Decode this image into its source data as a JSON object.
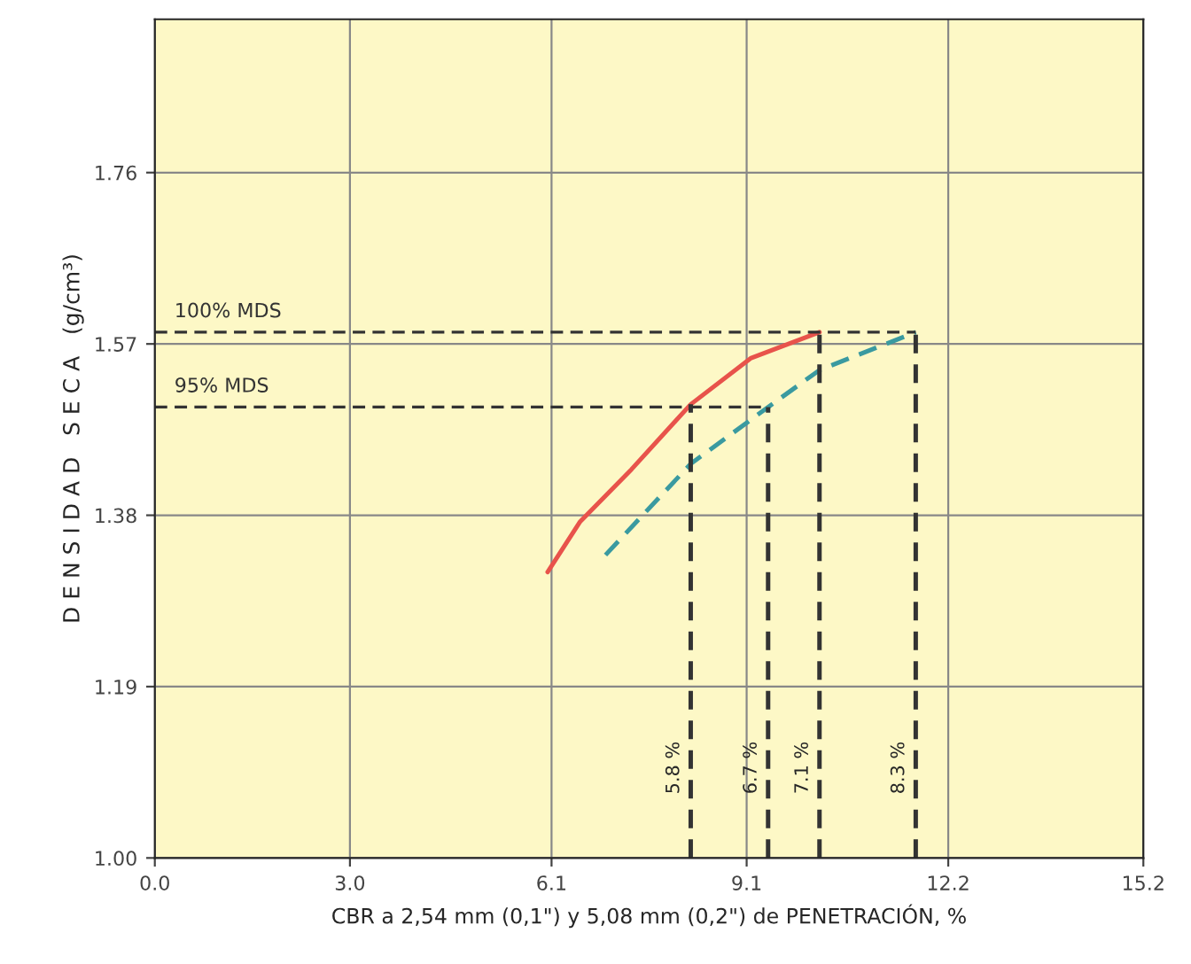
{
  "chart_data": {
    "type": "line",
    "xlabel": "CBR a 2,54 mm (0,1\") y 5,08 mm (0,2\") de PENETRACIÓN, %",
    "ylabel": "D E N S I D A D   S E C A   (g/cm³)",
    "xlim": [
      0,
      15.2
    ],
    "ylim": [
      1.0,
      1.93
    ],
    "xticks": [
      {
        "value": 0,
        "label": "0.0"
      },
      {
        "value": 3.0,
        "label": "3.0"
      },
      6.1,
      9.1,
      12.2,
      15.2
    ],
    "yticks": [
      {
        "value": 1.0,
        "label": "1.00"
      },
      1.19,
      1.38,
      1.57,
      1.76
    ],
    "grid": true,
    "legend": false,
    "series": [
      {
        "color": "#e8534b",
        "line_style": "solid",
        "x": [
          6.04,
          6.54,
          7.33,
          8.24,
          9.16,
          10.22
        ],
        "values": [
          1.317,
          1.373,
          1.431,
          1.503,
          1.554,
          1.583
        ]
      },
      {
        "color": "#3a9aa0",
        "line_style": "dashed",
        "x": [
          6.93,
          8.24,
          9.43,
          10.22,
          11.7
        ],
        "values": [
          1.336,
          1.437,
          1.5,
          1.541,
          1.583
        ]
      },
      {
        "name": "100% MDS",
        "color": "#333333",
        "line_style": "dashed",
        "x": [
          0,
          11.7
        ],
        "values": [
          1.583,
          1.583
        ]
      },
      {
        "name": "95% MDS",
        "color": "#333333",
        "line_style": "dashed",
        "x": [
          0,
          9.43
        ],
        "values": [
          1.5,
          1.5
        ]
      },
      {
        "color": "#333333",
        "line_style": "dashed",
        "x": [
          8.24,
          8.24
        ],
        "values": [
          1.0,
          1.503
        ]
      },
      {
        "color": "#333333",
        "line_style": "dashed",
        "x": [
          9.43,
          9.43
        ],
        "values": [
          1.0,
          1.5
        ]
      },
      {
        "color": "#333333",
        "line_style": "dashed",
        "x": [
          10.22,
          10.22
        ],
        "values": [
          1.0,
          1.583
        ]
      },
      {
        "color": "#333333",
        "line_style": "dashed",
        "x": [
          11.7,
          11.7
        ],
        "values": [
          1.0,
          1.583
        ]
      }
    ],
    "annotations": [
      {
        "text": "5.8 %",
        "x": 8.24,
        "y": 1.1
      },
      {
        "text": "6.7 %",
        "x": 9.43,
        "y": 1.1
      },
      {
        "text": "7.1 %",
        "x": 10.22,
        "y": 1.1
      },
      {
        "text": "8.3 %",
        "x": 11.7,
        "y": 1.1
      }
    ]
  }
}
